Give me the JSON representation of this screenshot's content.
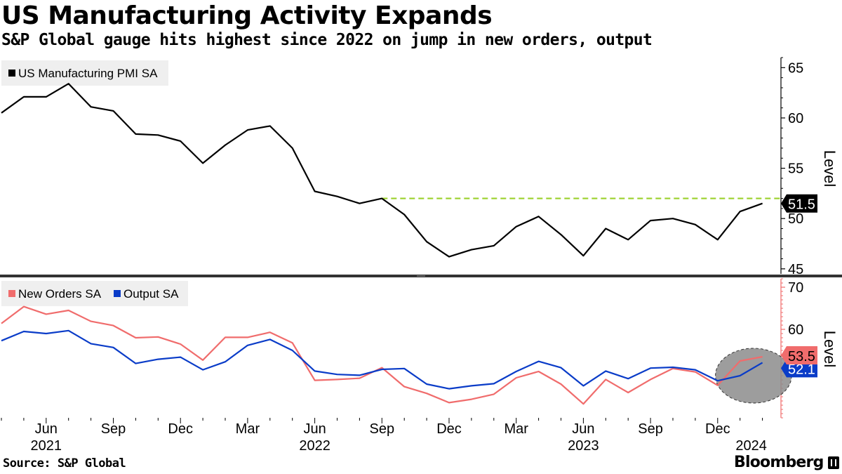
{
  "title": "US Manufacturing Activity Expands",
  "subtitle": "S&P Global gauge hits highest since 2022 on jump in new orders, output",
  "source": "Source: S&P Global",
  "brand": "Bloomberg",
  "colors": {
    "pmi": "#000000",
    "new_orders": "#f06c6c",
    "output": "#0a3cc8",
    "reference": "#9bd12a",
    "highlight_fill": "#8c8c8c",
    "divider": "#333333",
    "label_bg": "#efefef"
  },
  "x_axis": {
    "months": [
      "Apr 2021",
      "May 2021",
      "Jun 2021",
      "Jul 2021",
      "Aug 2021",
      "Sep 2021",
      "Oct 2021",
      "Nov 2021",
      "Dec 2021",
      "Jan 2022",
      "Feb 2022",
      "Mar 2022",
      "Apr 2022",
      "May 2022",
      "Jun 2022",
      "Jul 2022",
      "Aug 2022",
      "Sep 2022",
      "Oct 2022",
      "Nov 2022",
      "Dec 2022",
      "Jan 2023",
      "Feb 2023",
      "Mar 2023",
      "Apr 2023",
      "May 2023",
      "Jun 2023",
      "Jul 2023",
      "Aug 2023",
      "Sep 2023",
      "Oct 2023",
      "Nov 2023",
      "Dec 2023",
      "Jan 2024",
      "Feb 2024"
    ],
    "tick_labels": [
      {
        "index": 2,
        "label": "Jun"
      },
      {
        "index": 5,
        "label": "Sep"
      },
      {
        "index": 8,
        "label": "Dec"
      },
      {
        "index": 11,
        "label": "Mar"
      },
      {
        "index": 14,
        "label": "Jun"
      },
      {
        "index": 17,
        "label": "Sep"
      },
      {
        "index": 20,
        "label": "Dec"
      },
      {
        "index": 23,
        "label": "Mar"
      },
      {
        "index": 26,
        "label": "Jun"
      },
      {
        "index": 29,
        "label": "Sep"
      },
      {
        "index": 32,
        "label": "Dec"
      }
    ],
    "year_labels": [
      {
        "index": 2,
        "label": "2021"
      },
      {
        "index": 14,
        "label": "2022"
      },
      {
        "index": 26,
        "label": "2023"
      },
      {
        "index": 33.5,
        "label": "2024"
      }
    ]
  },
  "chart_data": [
    {
      "type": "line",
      "panel": "top",
      "title": "US Manufacturing Activity Expands",
      "ylabel": "Level",
      "ylim": [
        44.5,
        66
      ],
      "yticks": [
        45,
        50,
        55,
        60,
        65
      ],
      "legend_position": "top-left",
      "series": [
        {
          "name": "US Manufacturing PMI SA",
          "values": [
            60.5,
            62.1,
            62.1,
            63.4,
            61.1,
            60.7,
            58.4,
            58.3,
            57.7,
            55.5,
            57.3,
            58.8,
            59.2,
            57.0,
            52.7,
            52.2,
            51.5,
            52.0,
            50.4,
            47.7,
            46.2,
            46.9,
            47.3,
            49.2,
            50.2,
            48.4,
            46.3,
            49.0,
            47.9,
            49.8,
            50.0,
            49.4,
            47.9,
            50.7,
            51.5
          ]
        }
      ],
      "reference_line": {
        "value": 52.0,
        "from_index": 17,
        "style": "dashed"
      },
      "last_value_label": "51.5"
    },
    {
      "type": "line",
      "panel": "bottom",
      "ylabel": "Level",
      "ylim": [
        39,
        72
      ],
      "yticks": [
        50,
        60,
        70
      ],
      "legend_position": "top-left",
      "series": [
        {
          "name": "New Orders SA",
          "values": [
            61.4,
            65.4,
            63.6,
            64.5,
            61.9,
            60.9,
            58.0,
            58.2,
            56.5,
            52.7,
            58.1,
            58.1,
            59.3,
            56.8,
            47.9,
            48.1,
            48.4,
            50.9,
            46.4,
            44.8,
            42.6,
            43.4,
            44.6,
            48.5,
            50.0,
            47.0,
            42.3,
            48.1,
            45.0,
            48.1,
            50.7,
            49.9,
            46.7,
            52.5,
            53.5
          ]
        },
        {
          "name": "Output SA",
          "values": [
            57.3,
            59.5,
            59.0,
            59.7,
            56.6,
            55.7,
            51.9,
            52.9,
            53.4,
            50.4,
            52.3,
            56.2,
            57.6,
            55.0,
            50.1,
            49.3,
            49.1,
            50.5,
            50.7,
            47.0,
            45.9,
            46.6,
            47.1,
            50.0,
            52.4,
            50.9,
            46.6,
            50.1,
            48.3,
            50.8,
            51.0,
            50.4,
            47.8,
            49.0,
            52.1
          ]
        }
      ],
      "highlight": {
        "shape": "ellipse",
        "from_index": 31.9,
        "to_index": 35.3,
        "y_range": [
          42.5,
          55.5
        ]
      },
      "last_value_labels": [
        {
          "series": "New Orders SA",
          "label": "53.5"
        },
        {
          "series": "Output SA",
          "label": "52.1"
        }
      ]
    }
  ]
}
